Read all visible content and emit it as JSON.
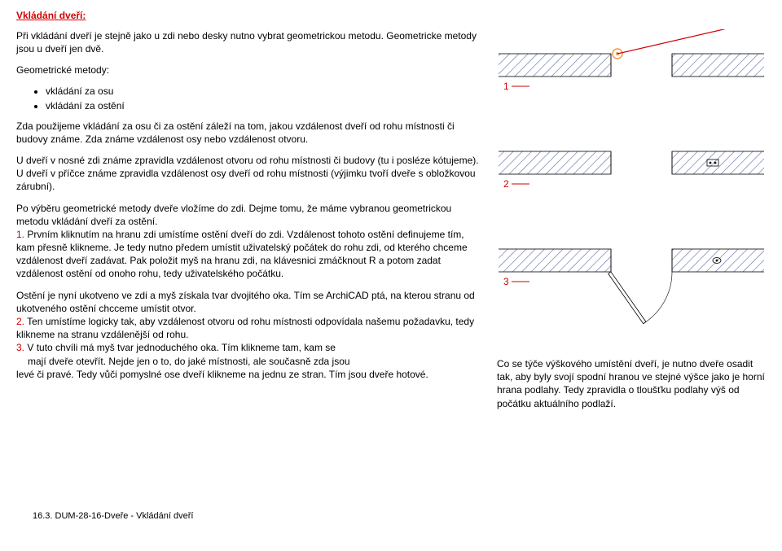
{
  "title": "Vkládání dveří:",
  "intro": "Při vkládání dveří je stejně jako u zdi nebo desky nutno vybrat geometrickou metodu. Geometricke metody jsou u dveří jen dvě.",
  "geomHeading": "Geometrické metody:",
  "bullets": [
    "vkládání za osu",
    "vkládání za ostění"
  ],
  "p1": "Zda použijeme vkládání za osu či za ostění záleží na tom, jakou vzdálenost dveří od rohu místnosti či budovy známe. Zda známe vzdálenost osy nebo vzdálenost otvoru.",
  "p2": "U dveří v nosné zdi známe zpravidla vzdálenost otvoru od rohu místnosti či budovy (tu i posléze kótujeme).",
  "p3": "U dveří v příčce známe zpravidla vzdálenost osy dveří od rohu místnosti (výjimku tvoří dveře s obložkovou zárubní).",
  "p4a": "Po výběru geometrické metody dveře vložíme do zdi. Dejme tomu, že máme vybranou geometrickou metodu vkládání dveří za ostění.",
  "n1": "1.",
  "p4b": " Prvním kliknutím na hranu zdi umístíme ostění dveří do zdi. Vzdálenost tohoto ostění definujeme tím, kam přesně klikneme.  Je tedy nutno předem umístit uživatelský počátek do rohu zdi, od kterého chceme vzdálenost dveří zadávat. Pak položit myš na hranu zdi, na klávesnici zmáčknout R a potom zadat vzdálenost ostění od onoho rohu, tedy uživatelského počátku.",
  "p5": "Ostění je nyní ukotveno ve zdi a myš získala tvar dvojitého oka. Tím se ArchiCAD ptá, na kterou stranu od ukotveného ostění chcceme umístit otvor.",
  "n2": "2.",
  "p6": " Ten umístíme logicky tak, aby vzdálenost otvoru od rohu místnosti odpovídala našemu požadavku, tedy klikneme na stranu vzdálenější od rohu.",
  "n3": "3.",
  "p7a": " V tuto chvíli má myš tvar jednoduchého oka. Tím klikneme tam, kam se",
  "p7b": "mají dveře otevřít. Nejde jen o to, do jaké místnosti, ale současně zda jsou",
  "p7c": "levé či pravé. Tedy vůči pomyslné ose dveří klikneme na jednu ze stran. Tím jsou dveře hotové.",
  "rightText": "Co se týče výškového umístění dveří, je nutno dveře osadit tak, aby byly svojí spodní hranou ve stejné výšce jako je horní hrana podlahy. Tedy zpravidla o tloušťku podlahy výš od počátku aktuálního podlaží.",
  "pageLabel": "16.3. DUM-28-16-Dveře - Vkládání dveří",
  "diagram": {
    "labels": [
      "1",
      "2",
      "3"
    ],
    "labelColor": "#d00000",
    "bg": "#ffffff",
    "wallFill": "#ffffff",
    "wallStroke": "#000000",
    "hatchStroke": "#5a6aa8",
    "leaderStroke": "#d00000",
    "ringStroke": "#f29a4a",
    "fontSize": 12
  }
}
